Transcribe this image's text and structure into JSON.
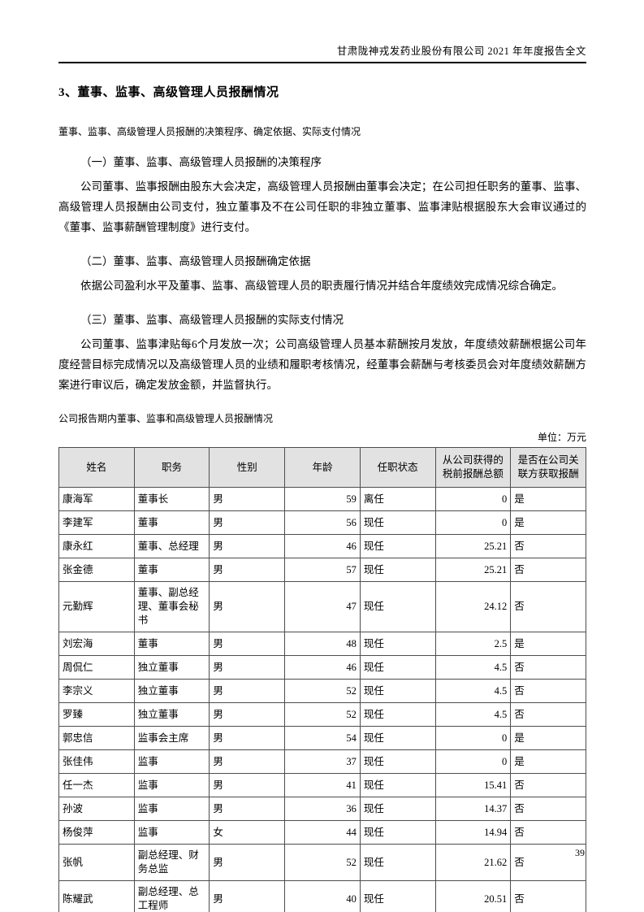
{
  "page": {
    "header_title": "甘肃陇神戎发药业股份有限公司 2021 年年度报告全文",
    "page_number": "39"
  },
  "section": {
    "title": "3、董事、监事、高级管理人员报酬情况",
    "intro": "董事、监事、高级管理人员报酬的决策程序、确定依据、实际支付情况",
    "sub1_title": "（一）董事、监事、高级管理人员报酬的决策程序",
    "sub1_body": "公司董事、监事报酬由股东大会决定，高级管理人员报酬由董事会决定；在公司担任职务的董事、监事、高级管理人员报酬由公司支付，独立董事及不在公司任职的非独立董事、监事津贴根据股东大会审议通过的《董事、监事薪酬管理制度》进行支付。",
    "sub2_title": "（二）董事、监事、高级管理人员报酬确定依据",
    "sub2_body": "依据公司盈利水平及董事、监事、高级管理人员的职责履行情况并结合年度绩效完成情况综合确定。",
    "sub3_title": "（三）董事、监事、高级管理人员报酬的实际支付情况",
    "sub3_body": "公司董事、监事津贴每6个月发放一次；公司高级管理人员基本薪酬按月发放，年度绩效薪酬根据公司年度经营目标完成情况以及高级管理人员的业绩和履职考核情况，经董事会薪酬与考核委员会对年度绩效薪酬方案进行审议后，确定发放金额，并监督执行。",
    "table_caption": "公司报告期内董事、监事和高级管理人员报酬情况",
    "unit_label": "单位：万元"
  },
  "table": {
    "headers": [
      "姓名",
      "职务",
      "性别",
      "年龄",
      "任职状态",
      "从公司获得的税前报酬总额",
      "是否在公司关联方获取报酬"
    ],
    "column_alignments": [
      "left",
      "left",
      "left",
      "right",
      "left",
      "right",
      "left"
    ],
    "rows": [
      [
        "康海军",
        "董事长",
        "男",
        "59",
        "离任",
        "0",
        "是"
      ],
      [
        "李建军",
        "董事",
        "男",
        "56",
        "现任",
        "0",
        "是"
      ],
      [
        "康永红",
        "董事、总经理",
        "男",
        "46",
        "现任",
        "25.21",
        "否"
      ],
      [
        "张金德",
        "董事",
        "男",
        "57",
        "现任",
        "25.21",
        "否"
      ],
      [
        "元勤辉",
        "董事、副总经理、董事会秘书",
        "男",
        "47",
        "现任",
        "24.12",
        "否"
      ],
      [
        "刘宏海",
        "董事",
        "男",
        "48",
        "现任",
        "2.5",
        "是"
      ],
      [
        "周侃仁",
        "独立董事",
        "男",
        "46",
        "现任",
        "4.5",
        "否"
      ],
      [
        "李宗义",
        "独立董事",
        "男",
        "52",
        "现任",
        "4.5",
        "否"
      ],
      [
        "罗臻",
        "独立董事",
        "男",
        "52",
        "现任",
        "4.5",
        "否"
      ],
      [
        "郭忠信",
        "监事会主席",
        "男",
        "54",
        "现任",
        "0",
        "是"
      ],
      [
        "张佳伟",
        "监事",
        "男",
        "37",
        "现任",
        "0",
        "是"
      ],
      [
        "任一杰",
        "监事",
        "男",
        "41",
        "现任",
        "15.41",
        "否"
      ],
      [
        "孙波",
        "监事",
        "男",
        "36",
        "现任",
        "14.37",
        "否"
      ],
      [
        "杨俊萍",
        "监事",
        "女",
        "44",
        "现任",
        "14.94",
        "否"
      ],
      [
        "张帆",
        "副总经理、财务总监",
        "男",
        "52",
        "现任",
        "21.62",
        "否"
      ],
      [
        "陈耀武",
        "副总经理、总工程师",
        "男",
        "40",
        "现任",
        "20.51",
        "否"
      ]
    ]
  }
}
